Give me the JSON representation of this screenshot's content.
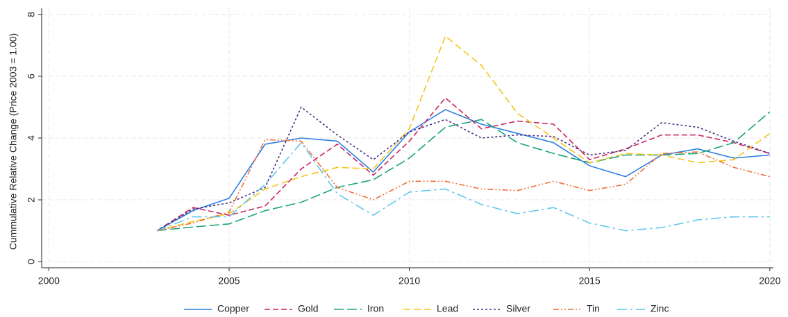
{
  "chart_data": {
    "type": "line",
    "ylabel": "Cummulative Relative Change (Price 2003 = 1.00)",
    "x": [
      2003,
      2004,
      2005,
      2006,
      2007,
      2008,
      2009,
      2010,
      2011,
      2012,
      2013,
      2014,
      2015,
      2016,
      2017,
      2018,
      2019,
      2020
    ],
    "series": [
      {
        "name": "Copper",
        "color": "#2e7fe0",
        "dash": "none",
        "values": [
          1.0,
          1.65,
          2.05,
          3.8,
          4.0,
          3.9,
          2.9,
          4.2,
          4.92,
          4.45,
          4.15,
          3.85,
          3.1,
          2.75,
          3.45,
          3.65,
          3.35,
          3.45
        ]
      },
      {
        "name": "Gold",
        "color": "#c9235f",
        "dash": "8 4",
        "values": [
          1.0,
          1.75,
          1.5,
          1.8,
          3.0,
          3.8,
          2.8,
          3.9,
          5.3,
          4.3,
          4.55,
          4.45,
          3.3,
          3.65,
          4.1,
          4.1,
          3.85,
          3.5
        ]
      },
      {
        "name": "Iron",
        "color": "#1aa37a",
        "dash": "14 5",
        "values": [
          1.0,
          1.12,
          1.22,
          1.65,
          1.92,
          2.4,
          2.65,
          3.35,
          4.35,
          4.6,
          3.85,
          3.5,
          3.2,
          3.45,
          3.45,
          3.5,
          3.85,
          4.85
        ]
      },
      {
        "name": "Lead",
        "color": "#f5c518",
        "dash": "10 5",
        "values": [
          1.0,
          1.3,
          1.55,
          2.35,
          2.75,
          3.05,
          3.0,
          4.3,
          7.3,
          6.35,
          4.8,
          4.0,
          3.2,
          3.5,
          3.45,
          3.2,
          3.3,
          4.15
        ]
      },
      {
        "name": "Silver",
        "color": "#4b2e83",
        "dash": "3 3",
        "values": [
          1.0,
          1.7,
          1.9,
          2.4,
          5.0,
          4.1,
          3.3,
          4.2,
          4.6,
          4.0,
          4.1,
          4.05,
          3.45,
          3.6,
          4.5,
          4.35,
          3.9,
          3.5
        ]
      },
      {
        "name": "Tin",
        "color": "#f0703a",
        "dash": "8 3 2 3 2 3",
        "values": [
          1.0,
          1.25,
          1.6,
          3.95,
          3.9,
          2.4,
          2.0,
          2.6,
          2.6,
          2.35,
          2.3,
          2.6,
          2.3,
          2.5,
          3.5,
          3.55,
          3.05,
          2.75
        ]
      },
      {
        "name": "Zinc",
        "color": "#5ec8ee",
        "dash": "14 5 3 5",
        "values": [
          1.0,
          1.45,
          1.45,
          2.5,
          3.85,
          2.2,
          1.5,
          2.25,
          2.35,
          1.85,
          1.55,
          1.75,
          1.25,
          1.0,
          1.1,
          1.35,
          1.45,
          1.45
        ]
      }
    ],
    "xlim": [
      1999.8,
      2020.1
    ],
    "xticks": [
      2000,
      2005,
      2010,
      2015,
      2020
    ],
    "ylim": [
      -0.2,
      8.2
    ],
    "yticks": [
      0,
      2,
      4,
      6,
      8
    ],
    "grid": true,
    "legend": "bottom"
  }
}
